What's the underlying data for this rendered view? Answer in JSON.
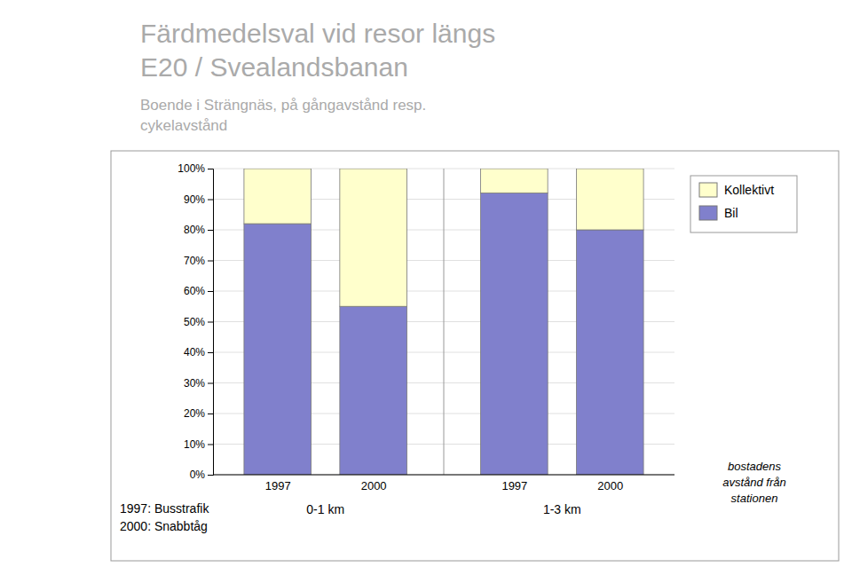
{
  "chart_data": {
    "type": "bar",
    "stacked": true,
    "title": [
      "Färdmedelsval vid resor längs",
      "E20 / Svealandsbanan"
    ],
    "subtitle": [
      "Boende i Strängnäs, på gångavstånd resp.",
      "cykelavstånd"
    ],
    "categories": [
      "1997",
      "2000",
      "1997",
      "2000"
    ],
    "group_labels": [
      "0-1 km",
      "1-3 km"
    ],
    "series": [
      {
        "name": "Bil",
        "color": "#8080cc",
        "values": [
          0.82,
          0.55,
          0.92,
          0.8
        ]
      },
      {
        "name": "Kollektivt",
        "color": "#ffffcc",
        "values": [
          0.18,
          0.45,
          0.08,
          0.2
        ]
      }
    ],
    "ylim": [
      0,
      1.0
    ],
    "yticks": [
      {
        "value": 0.0,
        "label": "0%"
      },
      {
        "value": 0.1,
        "label": "10%"
      },
      {
        "value": 0.2,
        "label": "20%"
      },
      {
        "value": 0.3,
        "label": "30%"
      },
      {
        "value": 0.4,
        "label": "40%"
      },
      {
        "value": 0.5,
        "label": "50%"
      },
      {
        "value": 0.6,
        "label": "60%"
      },
      {
        "value": 0.7,
        "label": "70%"
      },
      {
        "value": 0.8,
        "label": "80%"
      },
      {
        "value": 0.9,
        "label": "90%"
      },
      {
        "value": 1.0,
        "label": "100%"
      }
    ],
    "grid": true,
    "legend": "right",
    "annotations": [
      [
        "1997: Busstrafik",
        "2000: Snabbtåg"
      ],
      [
        "bostadens",
        "avstånd från",
        "stationen"
      ]
    ]
  }
}
